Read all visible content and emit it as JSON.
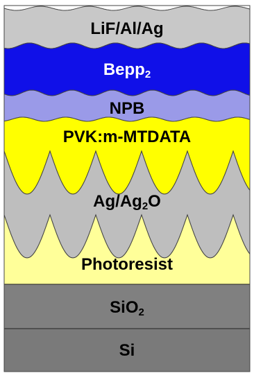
{
  "layers": [
    {
      "id": "lif",
      "label": "LiF/Al/Ag",
      "color": "#c8c8c8",
      "text_color": "#000000"
    },
    {
      "id": "bepp",
      "label_main": "Bepp",
      "label_sub": "2",
      "color": "#1010e8",
      "text_color": "#ffffff"
    },
    {
      "id": "npb",
      "label": "NPB",
      "color": "#9a9ae8",
      "text_color": "#000000"
    },
    {
      "id": "pvk",
      "label": "PVK:m-MTDATA",
      "color": "#ffff00",
      "text_color": "#000000"
    },
    {
      "id": "ag",
      "label_main": "Ag/Ag",
      "label_sub": "2",
      "label_tail": "O",
      "color": "#bebebe",
      "text_color": "#000000"
    },
    {
      "id": "photoresist",
      "label": "Photoresist",
      "color": "#ffff99",
      "text_color": "#000000"
    },
    {
      "id": "sio2",
      "label_main": "SiO",
      "label_sub": "2",
      "color": "#808080",
      "text_color": "#000000"
    },
    {
      "id": "si",
      "label": "Si",
      "color": "#7a7a7a",
      "text_color": "#000000"
    }
  ]
}
